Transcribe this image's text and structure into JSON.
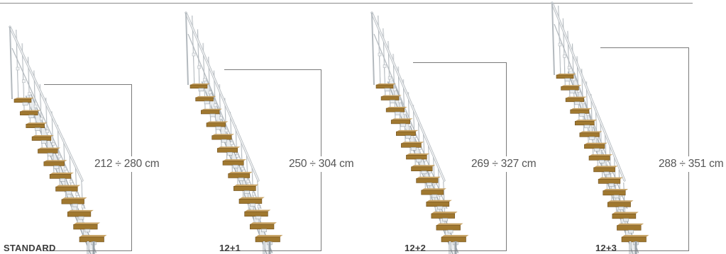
{
  "panels": [
    {
      "model": "STANDARD",
      "height_range": "212 ÷ 280 cm",
      "steps": 12
    },
    {
      "model": "12+1",
      "height_range": "250 ÷ 304 cm",
      "steps": 13
    },
    {
      "model": "12+2",
      "height_range": "269 ÷ 327 cm",
      "steps": 14
    },
    {
      "model": "12+3",
      "height_range": "288 ÷ 351 cm",
      "steps": 15
    }
  ],
  "colors": {
    "tread": "#a0782f",
    "tread_top": "#c7a263",
    "tread_edge": "#6e4e1c",
    "frame": "#e9ecee",
    "frame_stroke": "#9aa3aa",
    "rail": "#f2f3f4",
    "rail_stroke": "#b3b9be",
    "line": "#7a7a7a"
  }
}
